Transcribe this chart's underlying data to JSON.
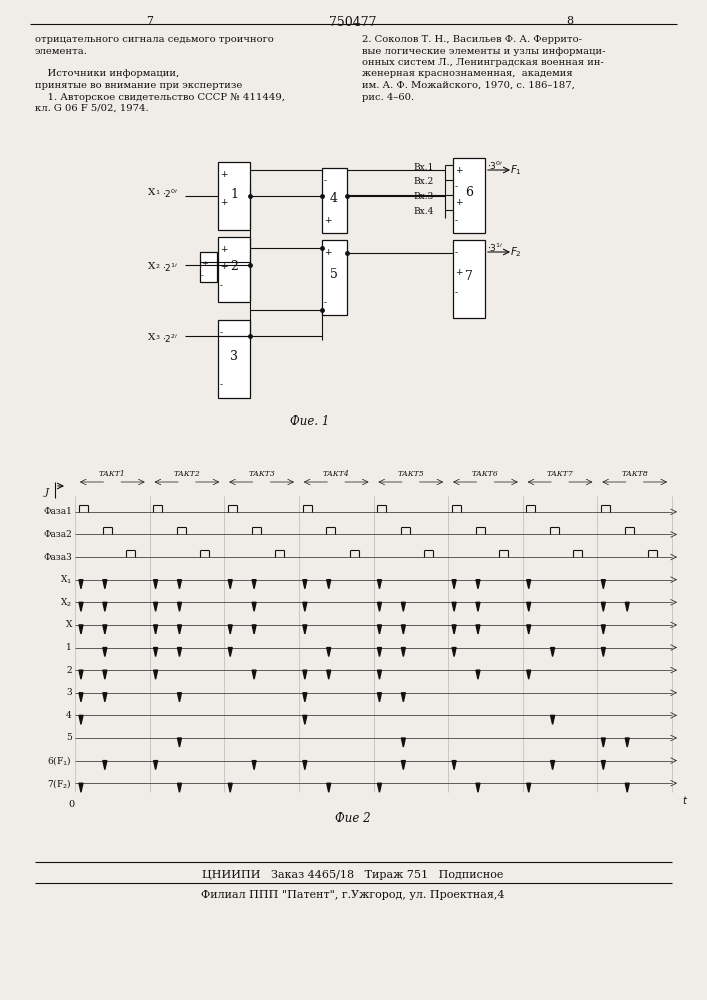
{
  "page_number_left": "7",
  "page_number_center": "750477",
  "page_number_right": "8",
  "left_text_lines": [
    "отрицательного сигнала седьмого троичного",
    "элемента.",
    "",
    "    Источники информации,",
    "принятые во внимание при экспертизе",
    "    1. Авторское свидетельство СССР № 411449,",
    "кл. G 06 F 5/02, 1974."
  ],
  "right_text_lines": [
    "2. Соколов Т. Н., Васильев Ф. А. Феррито-",
    "вые логические элементы и узлы информаци-",
    "онных систем Л., Ленинградская военная ин-",
    "женерная краснознаменная,  академия",
    "им. А. Ф. Можайского, 1970, с. 186–187,",
    "рис. 4–60."
  ],
  "footer_line1": "ЦНИИПИ   Заказ 4465/18   Тираж 751   Подписное",
  "footer_line2": "Филиал ППП \"Патент\", г.Ужгород, ул. Проектная,4",
  "fig1_caption": "Фие. 1",
  "fig2_caption": "Фие 2",
  "bg_color": "#f0ede8"
}
